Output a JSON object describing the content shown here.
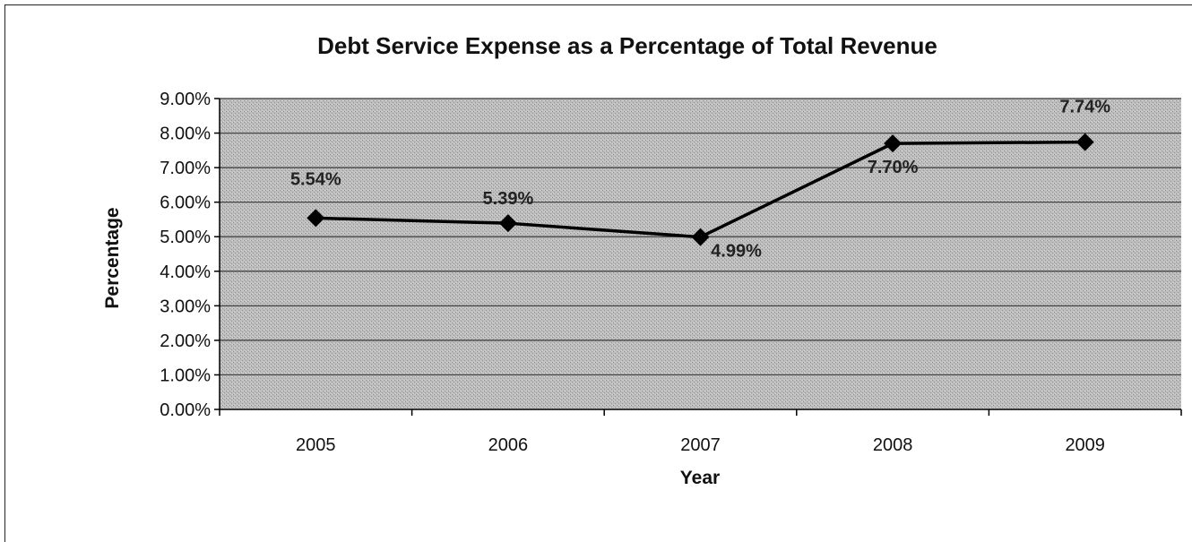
{
  "chart_data": {
    "type": "line",
    "title": "Debt Service Expense as a Percentage of Total Revenue",
    "xlabel": "Year",
    "ylabel": "Percentage",
    "categories": [
      "2005",
      "2006",
      "2007",
      "2008",
      "2009"
    ],
    "series": [
      {
        "values": [
          5.54,
          5.39,
          4.99,
          7.7,
          7.74
        ]
      }
    ],
    "data_labels": [
      "5.54%",
      "5.39%",
      "4.99%",
      "7.70%",
      "7.74%"
    ],
    "ylim": [
      0,
      9
    ],
    "y_ticks": [
      0,
      1,
      2,
      3,
      4,
      5,
      6,
      7,
      8,
      9
    ],
    "y_tick_labels": [
      "0.00%",
      "1.00%",
      "2.00%",
      "3.00%",
      "4.00%",
      "5.00%",
      "6.00%",
      "7.00%",
      "8.00%",
      "9.00%"
    ],
    "grid": true,
    "legend": "none",
    "colors": {
      "plot_background": "#b9b9b9",
      "line": "#000000",
      "marker": "#000000",
      "gridline": "#3a3a3a"
    }
  }
}
